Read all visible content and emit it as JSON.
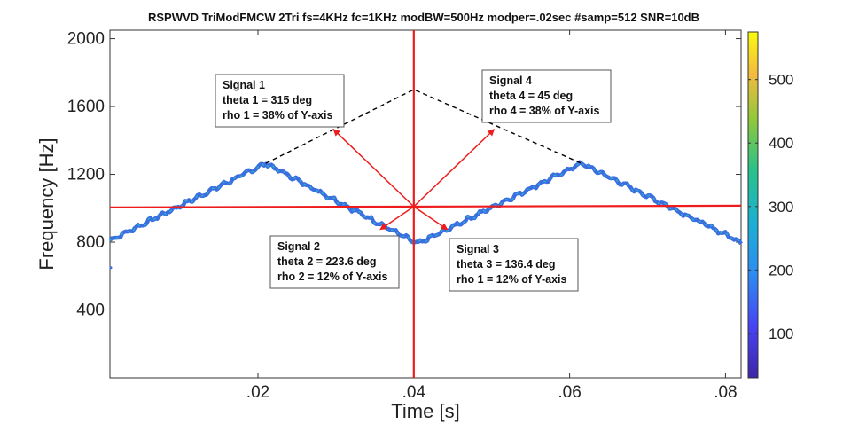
{
  "chart_data": {
    "type": "line",
    "title": "RSPWVD TriModFMCW 2Tri fs=4KHz fc=1KHz modBW=500Hz modper=.02sec #samp=512 SNR=10dB",
    "xlabel": "Time [s]",
    "ylabel": "Frequency [Hz]",
    "xlim": [
      0.001,
      0.082
    ],
    "ylim": [
      0,
      2050
    ],
    "x_ticks": [
      0.02,
      0.04,
      0.06,
      0.08
    ],
    "x_tick_labels": [
      ".02",
      ".04",
      ".06",
      ".08"
    ],
    "y_ticks": [
      400,
      800,
      1200,
      1600,
      2000
    ],
    "y_tick_labels": [
      "400",
      "800",
      "1200",
      "1600",
      "2000"
    ],
    "colorbar": {
      "range": [
        30,
        575
      ],
      "ticks": [
        100,
        200,
        300,
        400,
        500
      ],
      "tick_labels": [
        "100",
        "200",
        "300",
        "400",
        "500"
      ]
    },
    "signal_trace": {
      "x": [
        0.001,
        0.021,
        0.0405,
        0.0615,
        0.082
      ],
      "y": [
        810,
        1265,
        790,
        1265,
        800
      ]
    },
    "dashed_outline": {
      "x": [
        0.021,
        0.04,
        0.0615
      ],
      "y": [
        1265,
        1700,
        1265
      ]
    },
    "center": {
      "x": 0.04,
      "y": 1010
    },
    "vectors": [
      {
        "x": 0.0297,
        "y": 1465
      },
      {
        "x": 0.0357,
        "y": 875
      },
      {
        "x": 0.0443,
        "y": 875
      },
      {
        "x": 0.0503,
        "y": 1465
      }
    ],
    "annotations": [
      {
        "lines": [
          "Signal 1",
          "theta 1 = 315 deg",
          "rho 1 = 38% of Y-axis"
        ]
      },
      {
        "lines": [
          "Signal 2",
          "theta 2 = 223.6 deg",
          "rho 2 = 12% of Y-axis"
        ]
      },
      {
        "lines": [
          "Signal 3",
          "theta 3 = 136.4 deg",
          "rho 1 = 12% of Y-axis"
        ]
      },
      {
        "lines": [
          "Signal 4",
          "theta 4 = 45 deg",
          "rho 4 = 38% of Y-axis"
        ]
      }
    ],
    "colors": {
      "crosshair": "#ee1c1c",
      "trace": "#3b6fe0",
      "trace_highlight": "#2fb6c8",
      "dashed": "#000000"
    }
  }
}
